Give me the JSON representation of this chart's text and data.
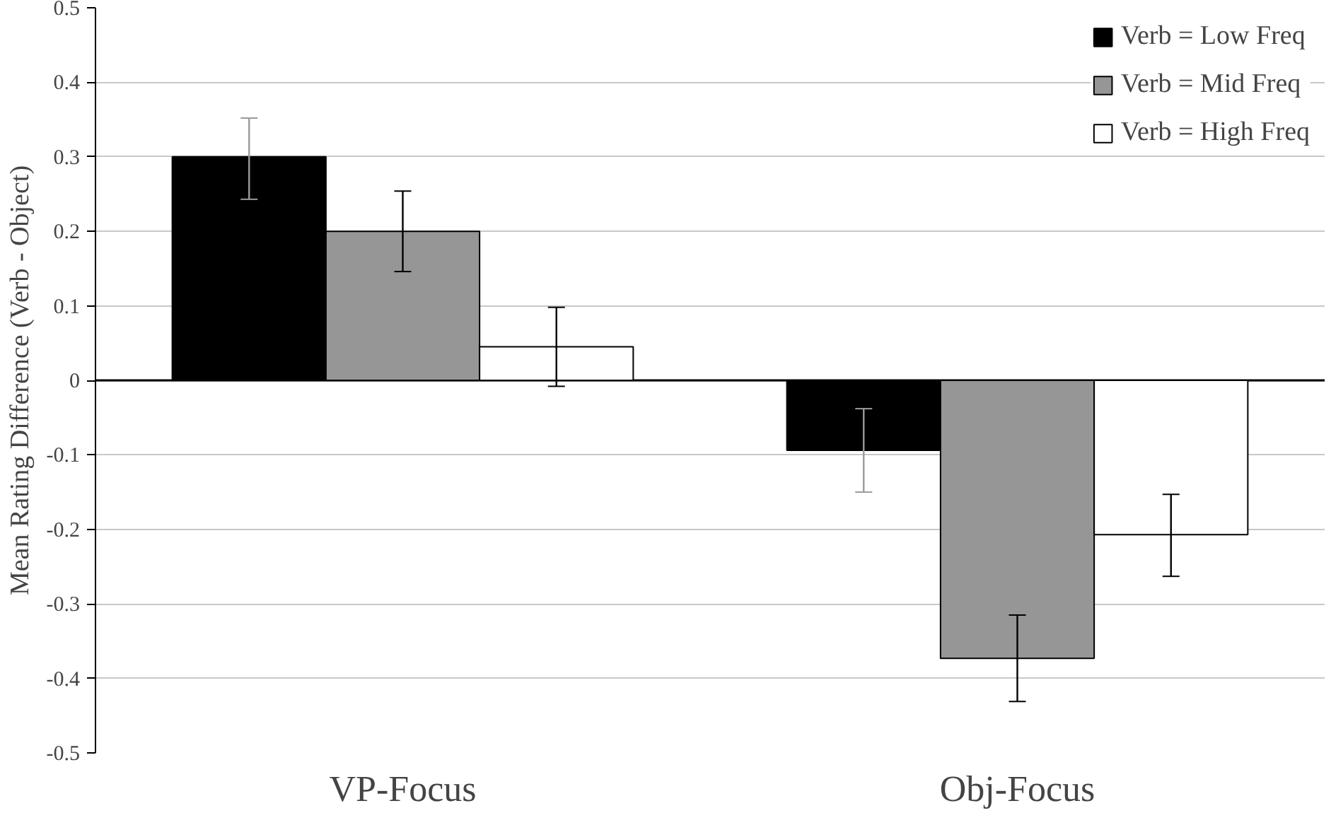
{
  "chart_data": {
    "type": "bar",
    "ylabel": "Mean Rating Difference (Verb - Object)",
    "categories": [
      "VP-Focus",
      "Obj-Focus"
    ],
    "series": [
      {
        "name": "Verb = Low Freq",
        "color": "#000000",
        "values": [
          0.3,
          -0.094
        ],
        "errors": [
          [
            0.243,
            0.352
          ],
          [
            -0.15,
            -0.038
          ]
        ]
      },
      {
        "name": "Verb = Mid Freq",
        "color": "#969696",
        "values": [
          0.2,
          -0.373
        ],
        "errors": [
          [
            0.146,
            0.254
          ],
          [
            -0.431,
            -0.315
          ]
        ]
      },
      {
        "name": "Verb = High Freq",
        "color": "#ffffff",
        "values": [
          0.045,
          -0.207
        ],
        "errors": [
          [
            -0.008,
            0.098
          ],
          [
            -0.263,
            -0.153
          ]
        ]
      }
    ],
    "ylim": [
      -0.5,
      0.5
    ],
    "yticks": [
      -0.5,
      -0.4,
      -0.3,
      -0.2,
      -0.1,
      0,
      0.1,
      0.2,
      0.3,
      0.4,
      0.5
    ],
    "grid": "y",
    "legend": "top right"
  }
}
